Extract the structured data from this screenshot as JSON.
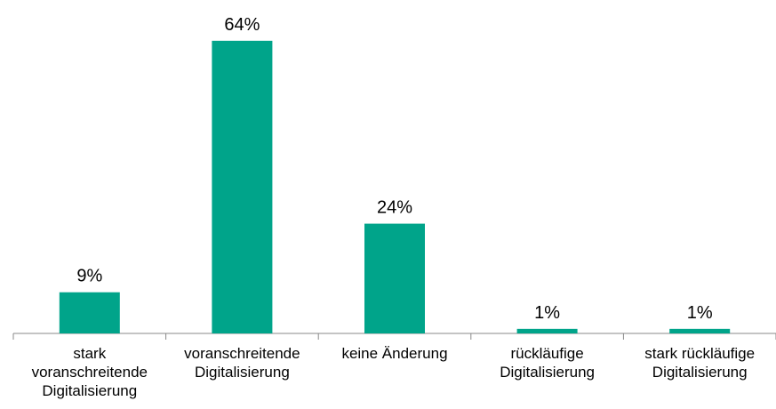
{
  "chart_data": {
    "type": "bar",
    "categories": [
      "stark voranschreitende Digitalisierung",
      "voranschreitende Digitalisierung",
      "keine Änderung",
      "rückläufige Digitalisierung",
      "stark rückläufige Digitalisierung"
    ],
    "values": [
      9,
      64,
      24,
      1,
      1
    ],
    "value_labels": [
      "9%",
      "64%",
      "24%",
      "1%",
      "1%"
    ],
    "color": "#00a48a",
    "ylim": [
      0,
      70
    ]
  }
}
